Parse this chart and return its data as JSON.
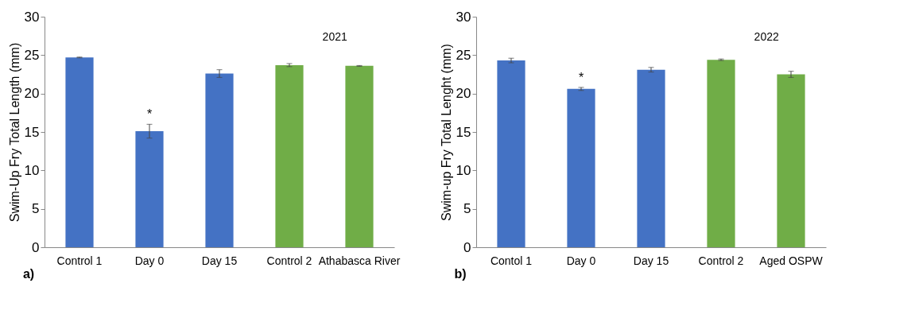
{
  "chart_data": [
    {
      "type": "bar",
      "ylabel": "Swim-Up Fry Total Length (mm)",
      "categories": [
        "Control 1",
        "Day 0",
        "Day 15",
        "Control 2",
        "Athabasca River"
      ],
      "values": [
        24.7,
        15.1,
        22.6,
        23.7,
        23.6
      ],
      "errors": [
        0.05,
        0.9,
        0.5,
        0.2,
        0.05
      ],
      "colors": [
        "#4472c4",
        "#4472c4",
        "#4472c4",
        "#70ad47",
        "#70ad47"
      ],
      "ylim": [
        0,
        30
      ],
      "yticks": [
        0,
        5,
        10,
        15,
        20,
        25,
        30
      ],
      "grid": false,
      "annotations": [
        "2021",
        "a)",
        "*"
      ]
    },
    {
      "type": "bar",
      "ylabel": "Swim-up Fry Total Lenght (mm)",
      "categories": [
        "Contol 1",
        "Day 0",
        "Day 15",
        "Control 2",
        "Aged OSPW"
      ],
      "values": [
        24.3,
        20.6,
        23.1,
        24.4,
        22.5
      ],
      "errors": [
        0.3,
        0.2,
        0.3,
        0.1,
        0.4
      ],
      "colors": [
        "#4472c4",
        "#4472c4",
        "#4472c4",
        "#70ad47",
        "#70ad47"
      ],
      "ylim": [
        0,
        30
      ],
      "yticks": [
        0,
        5,
        10,
        15,
        20,
        25,
        30
      ],
      "grid": false,
      "annotations": [
        "2022",
        "b)",
        "*"
      ]
    }
  ]
}
